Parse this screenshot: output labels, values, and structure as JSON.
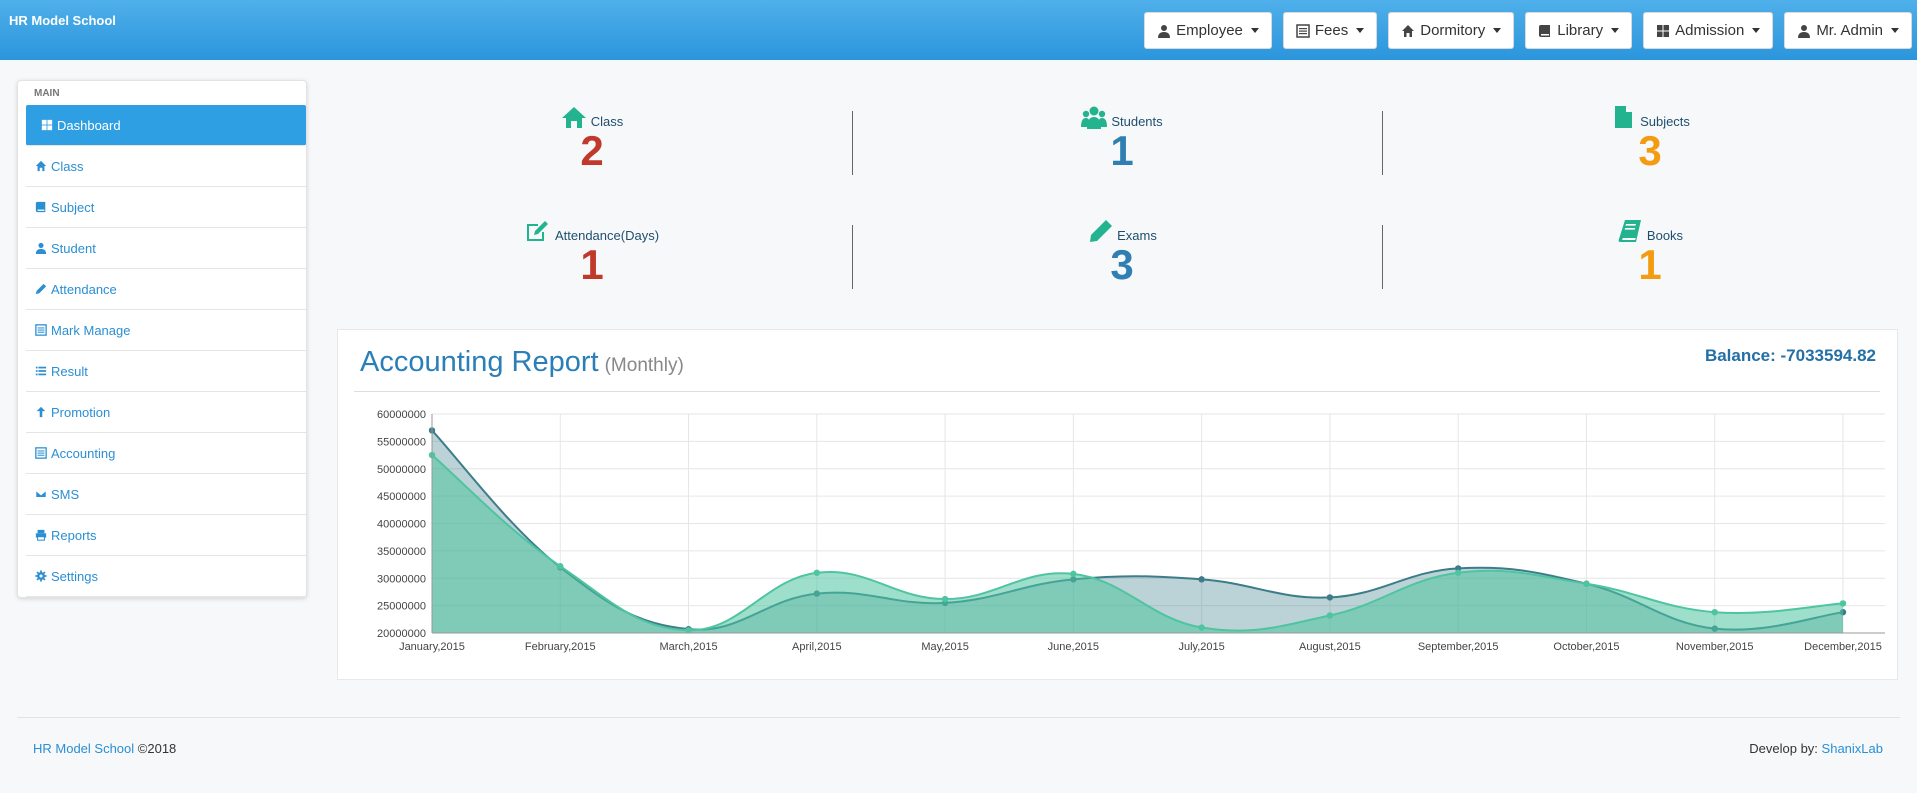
{
  "app": {
    "brand": "HR Model School"
  },
  "topnav": [
    {
      "label": "Employee",
      "icon": "user-icon"
    },
    {
      "label": "Fees",
      "icon": "list-icon"
    },
    {
      "label": "Dormitory",
      "icon": "home-icon"
    },
    {
      "label": "Library",
      "icon": "book-icon"
    },
    {
      "label": "Admission",
      "icon": "grid-icon"
    },
    {
      "label": "Mr. Admin",
      "icon": "user-icon"
    }
  ],
  "sidebar": {
    "heading": "MAIN",
    "items": [
      {
        "label": "Dashboard",
        "icon": "grid-icon"
      },
      {
        "label": "Class",
        "icon": "home-icon"
      },
      {
        "label": "Subject",
        "icon": "book-icon"
      },
      {
        "label": "Student",
        "icon": "user-icon"
      },
      {
        "label": "Attendance",
        "icon": "pencil-icon"
      },
      {
        "label": "Mark Manage",
        "icon": "list-icon"
      },
      {
        "label": "Result",
        "icon": "list-icon"
      },
      {
        "label": "Promotion",
        "icon": "arrow-up-icon"
      },
      {
        "label": "Accounting",
        "icon": "list-icon"
      },
      {
        "label": "SMS",
        "icon": "envelope-icon"
      },
      {
        "label": "Reports",
        "icon": "print-icon"
      },
      {
        "label": "Settings",
        "icon": "gear-icon"
      }
    ]
  },
  "stats": [
    {
      "label": "Class",
      "value": "2",
      "color": "#c0392b",
      "icon": "home-icon"
    },
    {
      "label": "Students",
      "value": "1",
      "color": "#2f7fb2",
      "icon": "users-icon"
    },
    {
      "label": "Subjects",
      "value": "3",
      "color": "#f39c12",
      "icon": "file-icon"
    },
    {
      "label": "Attendance(Days)",
      "value": "1",
      "color": "#c0392b",
      "icon": "edit-icon"
    },
    {
      "label": "Exams",
      "value": "3",
      "color": "#2f7fb2",
      "icon": "pencil-icon"
    },
    {
      "label": "Books",
      "value": "1",
      "color": "#f39c12",
      "icon": "book-icon"
    }
  ],
  "report": {
    "title": "Accounting Report",
    "subtitle": "(Monthly)",
    "balance": "Balance: -7033594.82"
  },
  "chart_data": {
    "type": "area",
    "categories": [
      "January,2015",
      "February,2015",
      "March,2015",
      "April,2015",
      "May,2015",
      "June,2015",
      "July,2015",
      "August,2015",
      "September,2015",
      "October,2015",
      "November,2015",
      "December,2015"
    ],
    "series": [
      {
        "color": "#3d7d8a",
        "values": [
          57000000,
          32000000,
          20700000,
          27200000,
          25500000,
          29800000,
          29800000,
          26500000,
          31800000,
          29000000,
          20800000,
          23800000
        ]
      },
      {
        "color": "#4fc4a0",
        "values": [
          52500000,
          32200000,
          20500000,
          31000000,
          26200000,
          30800000,
          21000000,
          23200000,
          31000000,
          29000000,
          23800000,
          25400000
        ]
      }
    ],
    "yticks": [
      "60000000",
      "55000000",
      "50000000",
      "45000000",
      "40000000",
      "35000000",
      "30000000",
      "25000000",
      "20000000"
    ],
    "ylim": [
      20000000,
      60000000
    ],
    "grid": true
  },
  "footer": {
    "brand_link": "HR Model School",
    "copyright": "©2018",
    "dev_prefix": "Develop by:",
    "dev_link": "ShanixLab"
  }
}
